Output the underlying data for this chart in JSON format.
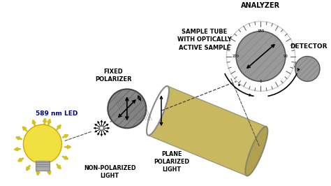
{
  "bg_color": "#ffffff",
  "labels": {
    "led": "589 nm LED",
    "non_pol": "NON-POLARIZED\nLIGHT",
    "fixed_pol": "FIXED\nPOLARIZER",
    "plane_pol": "PLANE\nPOLARIZED\nLIGHT",
    "sample_tube": "SAMPLE TUBE\nWITH OPTICALLY\nACTIVE SAMPLE",
    "analyzer": "ANALYZER",
    "detector": "DETECTOR"
  },
  "colors": {
    "bulb_body": "#f0e040",
    "bulb_rays": "#d4c020",
    "bulb_base": "#aaaaaa",
    "polarizer_disk": "#888888",
    "tube_body": "#c8b860",
    "tube_end": "#b0a050",
    "tube_opening": "#ffffff",
    "analyzer_disk": "#999999",
    "analyzer_ring_bg": "#ffffff",
    "text_color": "#000000",
    "label_blue": "#000080"
  },
  "figsize": [
    4.74,
    2.66
  ],
  "dpi": 100
}
